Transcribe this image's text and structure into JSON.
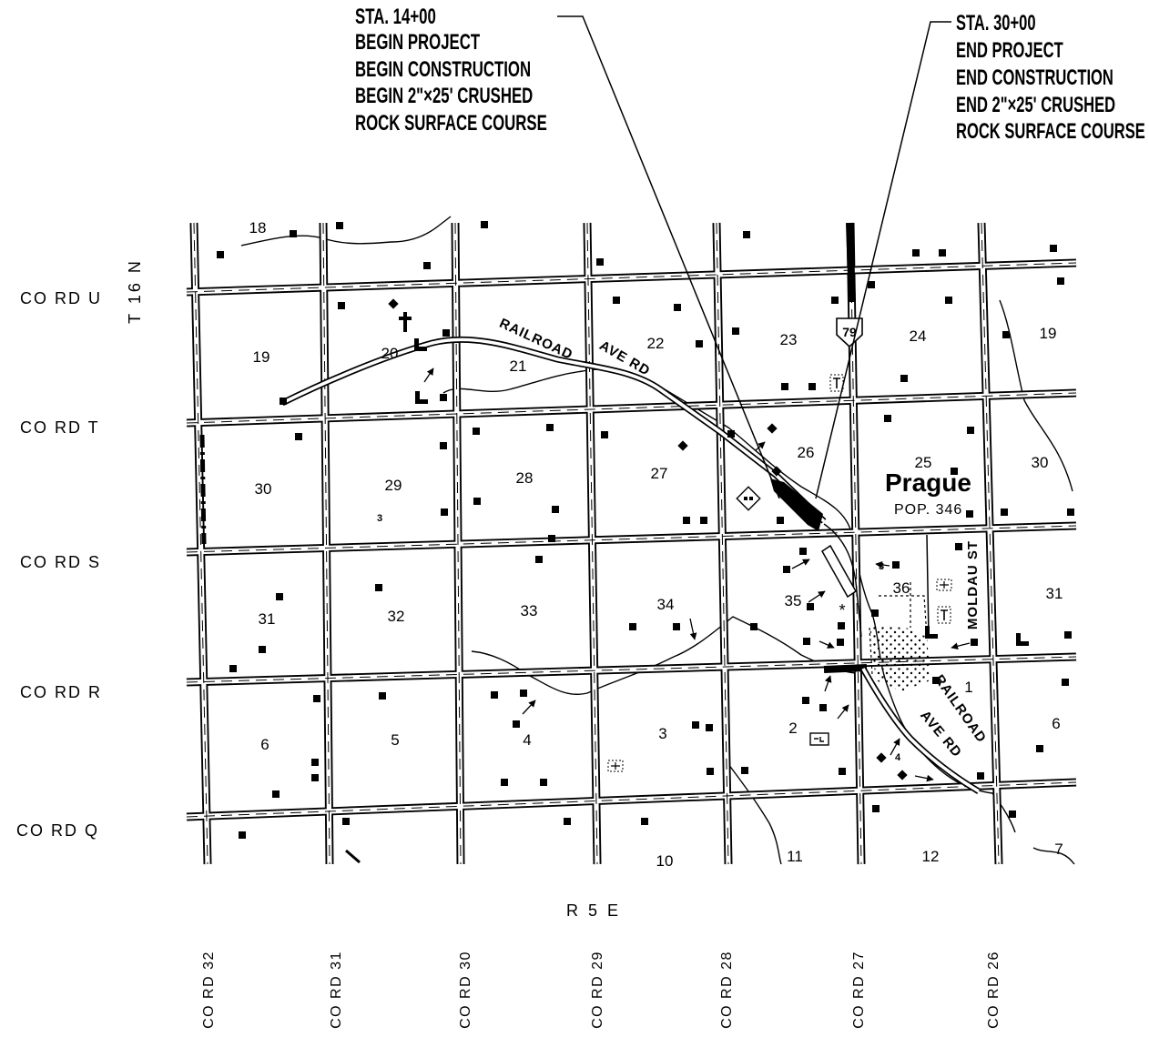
{
  "callouts": {
    "begin": {
      "station": "STA. 14+00",
      "line1": "BEGIN PROJECT",
      "line2": "BEGIN CONSTRUCTION",
      "line3": "BEGIN 2\"×25' CRUSHED",
      "line4": "ROCK SURFACE COURSE"
    },
    "end": {
      "station": "STA. 30+00",
      "line1": "END PROJECT",
      "line2": "END CONSTRUCTION",
      "line3": "END 2\"×25' CRUSHED",
      "line4": "ROCK SURFACE COURSE"
    }
  },
  "township_label": "T 16 N",
  "range_label": "R 5 E",
  "east_west_roads": [
    "CO RD U",
    "CO RD T",
    "CO RD S",
    "CO RD R",
    "CO RD Q"
  ],
  "north_south_roads": [
    "CO RD 32",
    "CO RD 31",
    "CO RD 30",
    "CO RD 29",
    "CO RD 28",
    "CO RD 27",
    "CO RD 26"
  ],
  "section_numbers": [
    "18",
    "19",
    "20",
    "21",
    "22",
    "23",
    "24",
    "19",
    "30",
    "29",
    "28",
    "27",
    "26",
    "25",
    "30",
    "31",
    "32",
    "33",
    "34",
    "35",
    "36",
    "31",
    "6",
    "5",
    "4",
    "3",
    "2",
    "1",
    "6",
    "10",
    "11",
    "12",
    "7"
  ],
  "town": {
    "name": "Prague",
    "population": "POP. 346"
  },
  "street_labels": {
    "railroad_upper": "RAILROAD",
    "ave_rd_upper": "AVE RD",
    "railroad_lower": "RAILROAD",
    "ave_rd_lower": "AVE RD",
    "moldau": "MOLDAU ST"
  },
  "highway_shield": "79",
  "small_labels": [
    "3",
    "3",
    "4",
    "*"
  ],
  "symbols": {
    "building": "building-icon",
    "farmstead": "diamond-icon",
    "l_building": "l-shaped-building-icon",
    "cross": "cross-icon",
    "tower": "tower-icon",
    "grid_box": "grid-box-icon",
    "school": "school-diamond-icon",
    "small_box": "small-box-icon",
    "route_shield": "highway-shield-icon",
    "pointer": "arrow-icon"
  }
}
